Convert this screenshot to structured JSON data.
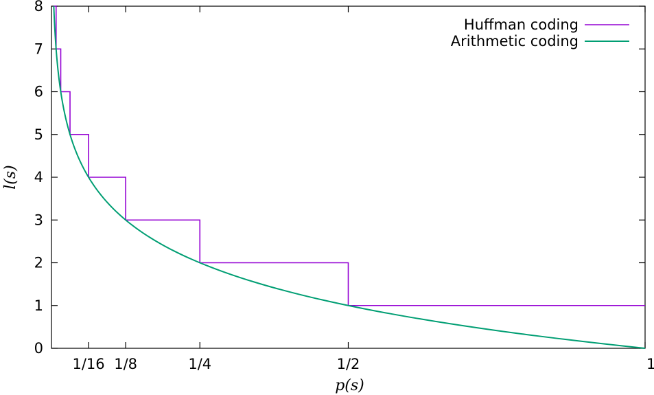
{
  "chart_data": {
    "type": "line",
    "xlabel": "p(s)",
    "ylabel": "l(s)",
    "xlim": [
      0,
      1
    ],
    "ylim": [
      0,
      8
    ],
    "x_ticks": [
      {
        "value": 0.0625,
        "label": "1/16"
      },
      {
        "value": 0.125,
        "label": "1/8"
      },
      {
        "value": 0.25,
        "label": "1/4"
      },
      {
        "value": 0.5,
        "label": "1/2"
      },
      {
        "value": 1,
        "label": "1"
      }
    ],
    "y_ticks": [
      0,
      1,
      2,
      3,
      4,
      5,
      6,
      7,
      8
    ],
    "grid": false,
    "legend_position": "top-right",
    "series": [
      {
        "name": "Huffman coding",
        "style": "step",
        "color": "#9400d3",
        "points": [
          {
            "x": 0.00390625,
            "y": 8
          },
          {
            "x": 0.0078125,
            "y": 8
          },
          {
            "x": 0.0078125,
            "y": 7
          },
          {
            "x": 0.015625,
            "y": 7
          },
          {
            "x": 0.015625,
            "y": 6
          },
          {
            "x": 0.03125,
            "y": 6
          },
          {
            "x": 0.03125,
            "y": 5
          },
          {
            "x": 0.0625,
            "y": 5
          },
          {
            "x": 0.0625,
            "y": 4
          },
          {
            "x": 0.125,
            "y": 4
          },
          {
            "x": 0.125,
            "y": 3
          },
          {
            "x": 0.25,
            "y": 3
          },
          {
            "x": 0.25,
            "y": 2
          },
          {
            "x": 0.5,
            "y": 2
          },
          {
            "x": 0.5,
            "y": 1
          },
          {
            "x": 1,
            "y": 1
          }
        ]
      },
      {
        "name": "Arithmetic coding",
        "style": "smooth",
        "function": "-log2(p)",
        "color": "#009e73",
        "x": [
          0.0039,
          0.0078,
          0.0156,
          0.0313,
          0.0625,
          0.125,
          0.25,
          0.5,
          0.75,
          1
        ],
        "y": [
          8,
          7,
          6,
          5,
          4,
          3,
          2,
          1,
          0.415,
          0
        ]
      }
    ]
  }
}
